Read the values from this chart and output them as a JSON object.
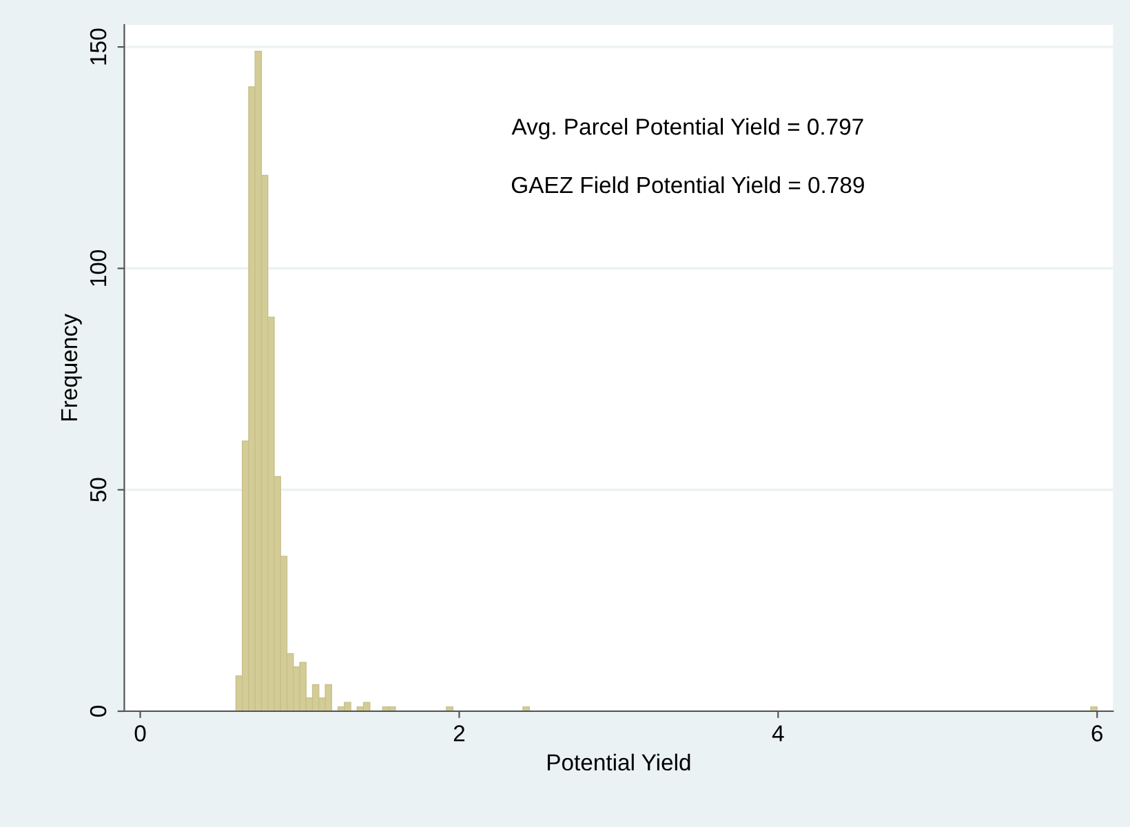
{
  "chart_data": {
    "type": "histogram",
    "xlabel": "Potential Yield",
    "ylabel": "Frequency",
    "annotations": [
      "Avg. Parcel Potential Yield = 0.797",
      "GAEZ Field Potential Yield = 0.789"
    ],
    "bins": [
      0.6,
      0.64,
      0.68,
      0.72,
      0.76,
      0.8,
      0.84,
      0.88,
      0.92,
      0.96,
      1,
      1.04,
      1.08,
      1.12,
      1.16,
      1.2,
      1.24,
      1.28,
      1.32,
      1.36,
      1.4,
      1.44,
      1.48,
      1.52,
      1.56,
      1.6,
      1.64,
      1.68,
      1.72,
      1.76,
      1.8,
      1.84,
      1.88,
      1.92,
      1.96,
      2,
      2.04,
      2.08,
      2.12,
      2.16,
      2.2,
      2.24,
      2.28,
      2.32,
      2.36,
      2.4,
      2.44,
      2.48,
      2.52,
      2.56,
      2.6,
      2.64,
      2.68,
      2.72,
      2.76,
      2.8,
      2.84,
      2.88,
      2.92,
      2.96,
      3,
      3.04,
      3.08,
      3.12,
      3.16,
      3.2,
      3.24,
      3.28,
      3.32,
      3.36,
      3.4,
      3.44,
      3.48,
      3.52,
      3.56,
      3.6,
      3.64,
      3.68,
      3.72,
      3.76,
      3.8,
      3.84,
      3.88,
      3.92,
      3.96,
      4,
      4.04,
      4.08,
      4.12,
      4.16,
      4.2,
      4.24,
      4.28,
      4.32,
      4.36,
      4.4,
      4.44,
      4.48,
      4.52,
      4.56,
      4.6,
      4.64,
      4.68,
      4.72,
      4.76,
      4.8,
      4.84,
      4.88,
      4.92,
      4.96,
      5,
      5.04,
      5.08,
      5.12,
      5.16,
      5.2,
      5.24,
      5.28,
      5.32,
      5.36,
      5.4,
      5.44,
      5.48,
      5.52,
      5.56,
      5.6,
      5.64,
      5.68,
      5.72,
      5.76,
      5.8,
      5.84,
      5.88,
      5.92,
      5.96,
      6
    ],
    "values": [
      8,
      61,
      141,
      149,
      121,
      89,
      53,
      35,
      13,
      10,
      11,
      3,
      6,
      3,
      6,
      0,
      1,
      2,
      0,
      1,
      2,
      0,
      0,
      1,
      1,
      0,
      0,
      0,
      0,
      0,
      0,
      0,
      0,
      1,
      0,
      0,
      0,
      0,
      0,
      0,
      0,
      0,
      0,
      0,
      0,
      1,
      0,
      0,
      0,
      0,
      0,
      0,
      0,
      0,
      0,
      0,
      0,
      0,
      0,
      0,
      0,
      0,
      0,
      0,
      0,
      0,
      0,
      0,
      0,
      0,
      0,
      0,
      0,
      0,
      0,
      0,
      0,
      0,
      0,
      0,
      0,
      0,
      0,
      0,
      0,
      0,
      0,
      0,
      0,
      0,
      0,
      0,
      0,
      0,
      0,
      0,
      0,
      0,
      0,
      0,
      0,
      0,
      0,
      0,
      0,
      0,
      0,
      0,
      0,
      0,
      0,
      0,
      0,
      0,
      0,
      0,
      0,
      0,
      0,
      0,
      0,
      0,
      0,
      0,
      0,
      0,
      0,
      0,
      0,
      0,
      0,
      0,
      0,
      0,
      1
    ],
    "color": "#d3cc96",
    "xlim": [
      -0.1,
      6.1
    ],
    "ylim": [
      0,
      155
    ],
    "xticks": [
      0,
      2,
      4,
      6
    ],
    "yticks": [
      0,
      50,
      100,
      150
    ],
    "grid": "y"
  }
}
